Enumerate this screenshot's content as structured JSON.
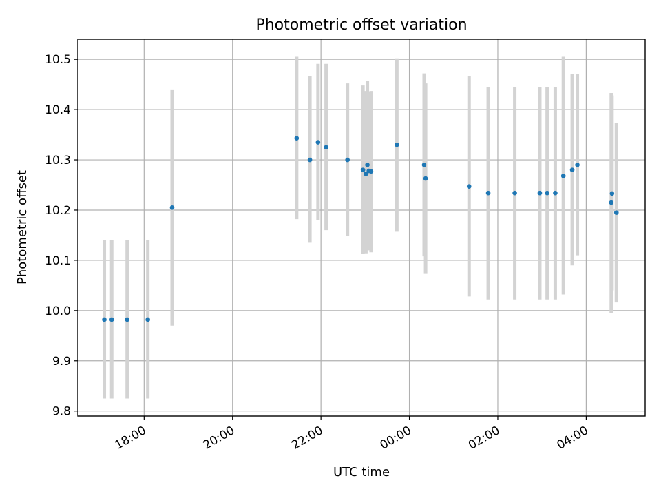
{
  "chart_data": {
    "type": "scatter",
    "title": "Photometric offset variation",
    "xlabel": "UTC time",
    "ylabel": "Photometric offset",
    "x_is_time": true,
    "xlim": [
      "16:30",
      "05:20"
    ],
    "ylim": [
      9.79,
      10.54
    ],
    "x_ticks": [
      "18:00",
      "20:00",
      "22:00",
      "00:00",
      "02:00",
      "04:00"
    ],
    "y_ticks": [
      9.8,
      9.9,
      10.0,
      10.1,
      10.2,
      10.3,
      10.4,
      10.5
    ],
    "y_tick_labels": [
      "9.8",
      "9.9",
      "10.0",
      "10.1",
      "10.2",
      "10.3",
      "10.4",
      "10.5"
    ],
    "grid": true,
    "point_color": "#1f77b4",
    "errorbar_color": "#d3d3d3",
    "points": [
      {
        "t": "17:06",
        "y": 9.982,
        "low": 9.825,
        "high": 10.14
      },
      {
        "t": "17:16",
        "y": 9.982,
        "low": 9.825,
        "high": 10.14
      },
      {
        "t": "17:37",
        "y": 9.982,
        "low": 9.825,
        "high": 10.14
      },
      {
        "t": "18:05",
        "y": 9.982,
        "low": 9.825,
        "high": 10.14
      },
      {
        "t": "18:38",
        "y": 10.205,
        "low": 9.97,
        "high": 10.44
      },
      {
        "t": "21:27",
        "y": 10.343,
        "low": 10.182,
        "high": 10.505
      },
      {
        "t": "21:45",
        "y": 10.3,
        "low": 10.135,
        "high": 10.467
      },
      {
        "t": "21:56",
        "y": 10.335,
        "low": 10.18,
        "high": 10.491
      },
      {
        "t": "22:07",
        "y": 10.325,
        "low": 10.16,
        "high": 10.491
      },
      {
        "t": "22:36",
        "y": 10.3,
        "low": 10.149,
        "high": 10.452
      },
      {
        "t": "22:57",
        "y": 10.28,
        "low": 10.113,
        "high": 10.448
      },
      {
        "t": "23:01",
        "y": 10.272,
        "low": 10.114,
        "high": 10.437
      },
      {
        "t": "23:03",
        "y": 10.29,
        "low": 10.124,
        "high": 10.457
      },
      {
        "t": "23:05",
        "y": 10.278,
        "low": 10.12,
        "high": 10.435
      },
      {
        "t": "23:08",
        "y": 10.277,
        "low": 10.116,
        "high": 10.437
      },
      {
        "t": "23:43",
        "y": 10.33,
        "low": 10.157,
        "high": 10.502
      },
      {
        "t": "00:20",
        "y": 10.29,
        "low": 10.108,
        "high": 10.472
      },
      {
        "t": "00:22",
        "y": 10.263,
        "low": 10.073,
        "high": 10.452
      },
      {
        "t": "01:21",
        "y": 10.247,
        "low": 10.028,
        "high": 10.467
      },
      {
        "t": "01:47",
        "y": 10.234,
        "low": 10.022,
        "high": 10.445
      },
      {
        "t": "02:23",
        "y": 10.234,
        "low": 10.022,
        "high": 10.445
      },
      {
        "t": "02:57",
        "y": 10.234,
        "low": 10.022,
        "high": 10.445
      },
      {
        "t": "03:07",
        "y": 10.234,
        "low": 10.022,
        "high": 10.445
      },
      {
        "t": "03:18",
        "y": 10.234,
        "low": 10.022,
        "high": 10.445
      },
      {
        "t": "03:29",
        "y": 10.268,
        "low": 10.032,
        "high": 10.505
      },
      {
        "t": "03:41",
        "y": 10.28,
        "low": 10.09,
        "high": 10.47
      },
      {
        "t": "03:48",
        "y": 10.29,
        "low": 10.11,
        "high": 10.47
      },
      {
        "t": "04:34",
        "y": 10.215,
        "low": 9.995,
        "high": 10.433
      },
      {
        "t": "04:35",
        "y": 10.233,
        "low": 10.04,
        "high": 10.428
      },
      {
        "t": "04:41",
        "y": 10.195,
        "low": 10.016,
        "high": 10.374
      }
    ]
  }
}
